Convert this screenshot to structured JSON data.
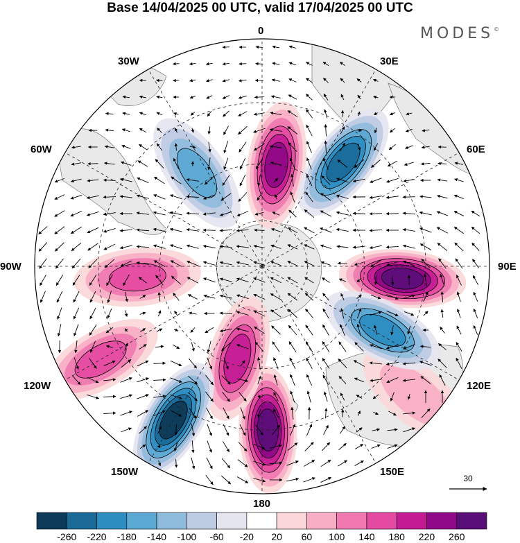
{
  "title": "Base 14/04/2025 00 UTC, valid 17/04/2025 00 UTC",
  "logo": "MODES",
  "logo_mark": "©",
  "longitude_labels": {
    "lon_0": "0",
    "lon_30e": "30E",
    "lon_60e": "60E",
    "lon_90e": "90E",
    "lon_120e": "120E",
    "lon_150e": "150E",
    "lon_180": "180",
    "lon_150w": "150W",
    "lon_120w": "120W",
    "lon_90w": "90W",
    "lon_60w": "60W",
    "lon_30w": "30W"
  },
  "reference_vector": "30",
  "projection": "south-polar-stereographic",
  "colorbar": {
    "ticks": [
      "-260",
      "-220",
      "-180",
      "-140",
      "-100",
      "-60",
      "-20",
      "20",
      "60",
      "100",
      "140",
      "180",
      "220",
      "260"
    ],
    "colors": [
      "#0d3a57",
      "#1a6a98",
      "#2d8dc0",
      "#5aa8d3",
      "#8fbbdc",
      "#bdcbe3",
      "#e5e5f0",
      "#ffffff",
      "#fbd7d9",
      "#f8aec4",
      "#f07ab0",
      "#e44aa1",
      "#c41b94",
      "#8f0887",
      "#5a0e78"
    ]
  },
  "map_colors": {
    "land": "#e9e9e9",
    "coast": "#777777",
    "grid": "#222222"
  },
  "anomaly_features": [
    {
      "name": "positive-0",
      "level": 220,
      "lon": 8,
      "r_frac": 0.45
    },
    {
      "name": "positive-90e",
      "level": 260,
      "lon": 95,
      "r_frac": 0.62
    },
    {
      "name": "positive-180",
      "level": 260,
      "lon": 178,
      "r_frac": 0.72
    },
    {
      "name": "positive-160w",
      "level": 180,
      "lon": -165,
      "r_frac": 0.42
    },
    {
      "name": "positive-120w",
      "level": 140,
      "lon": -120,
      "r_frac": 0.82
    },
    {
      "name": "positive-90w",
      "level": 140,
      "lon": -95,
      "r_frac": 0.55
    },
    {
      "name": "positive-130e",
      "level": 60,
      "lon": 130,
      "r_frac": 0.88
    },
    {
      "name": "negative-35e",
      "level": -220,
      "lon": 38,
      "r_frac": 0.58
    },
    {
      "name": "negative-35w",
      "level": -140,
      "lon": -35,
      "r_frac": 0.5
    },
    {
      "name": "negative-145w",
      "level": -260,
      "lon": -150,
      "r_frac": 0.78
    },
    {
      "name": "negative-120e",
      "level": -180,
      "lon": 118,
      "r_frac": 0.6
    }
  ]
}
